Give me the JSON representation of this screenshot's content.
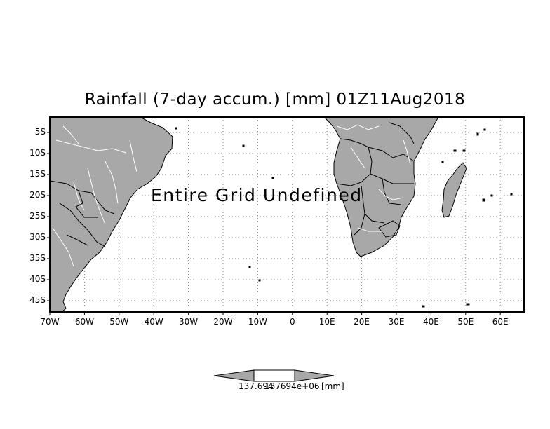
{
  "title": "Rainfall (7-day accum.) [mm] 01Z11Aug2018",
  "overlay_message": "Entire Grid Undefined",
  "map": {
    "land_color": "#a8a8a8",
    "river_color": "#ffffff",
    "grid": "dotted",
    "lat_labels": [
      "5S",
      "10S",
      "15S",
      "20S",
      "25S",
      "30S",
      "35S",
      "40S",
      "45S"
    ],
    "lon_labels": [
      "70W",
      "60W",
      "50W",
      "40W",
      "30W",
      "20W",
      "10W",
      "0",
      "10E",
      "20E",
      "30E",
      "40E",
      "50E",
      "60E"
    ]
  },
  "colorbar": {
    "left_label": "137.694",
    "right_label": "137694e+06",
    "unit_label": "[mm]"
  }
}
